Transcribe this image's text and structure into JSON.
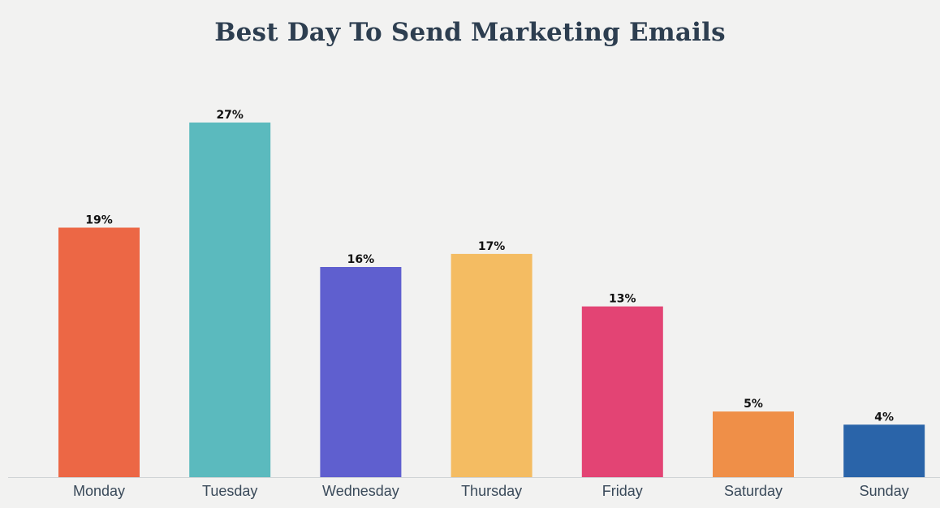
{
  "chart_data": {
    "type": "bar",
    "title": "Best Day To Send Marketing Emails",
    "xlabel": "",
    "ylabel": "",
    "categories": [
      "Monday",
      "Tuesday",
      "Wednesday",
      "Thursday",
      "Friday",
      "Saturday",
      "Sunday"
    ],
    "values": [
      19,
      27,
      16,
      17,
      13,
      5,
      4
    ],
    "value_labels": [
      "19%",
      "27%",
      "16%",
      "17%",
      "13%",
      "5%",
      "4%"
    ],
    "colors": [
      "#ec6745",
      "#5bbabe",
      "#5f5fcf",
      "#f4bc62",
      "#e34474",
      "#ef8f48",
      "#2a64a9"
    ],
    "ylim": [
      0,
      27
    ],
    "grid": false,
    "legend": "none"
  }
}
